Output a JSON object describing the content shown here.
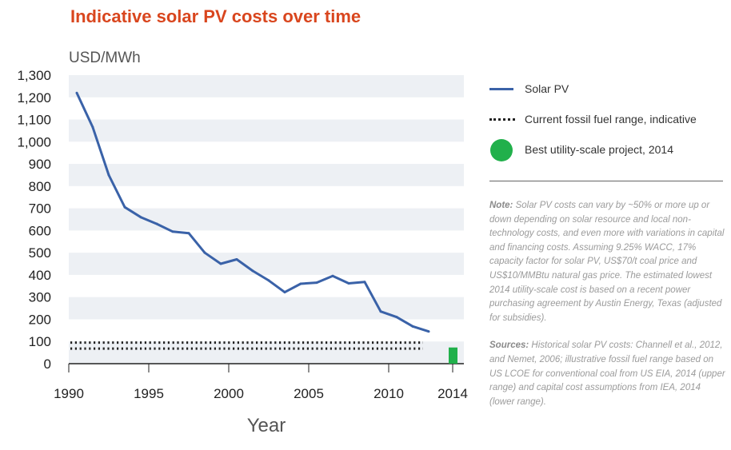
{
  "chart_data": {
    "type": "line",
    "title": "Indicative solar PV costs over time",
    "ylabel": "USD/MWh",
    "xlabel": "Year",
    "ylim": [
      0,
      1300
    ],
    "xlim": [
      1990,
      2014.7
    ],
    "yticks": [
      0,
      100,
      200,
      300,
      400,
      500,
      600,
      700,
      800,
      900,
      1000,
      1100,
      1200,
      1300
    ],
    "ytick_labels": [
      "0",
      "100",
      "200",
      "300",
      "400",
      "500",
      "600",
      "700",
      "800",
      "900",
      "1,000",
      "1,100",
      "1,200",
      "1,300"
    ],
    "xticks": [
      1990,
      1995,
      2000,
      2005,
      2010,
      2014
    ],
    "xtick_labels": [
      "1990",
      "1995",
      "2000",
      "2005",
      "2010",
      "2014"
    ],
    "series": [
      {
        "name": "Solar PV",
        "color": "#3a62a8",
        "x": [
          1990.5,
          1991.5,
          1992.5,
          1993.5,
          1994.5,
          1995.5,
          1996.5,
          1997.5,
          1998.5,
          1999.5,
          2000.5,
          2001.5,
          2002.5,
          2003.5,
          2004.5,
          2005.5,
          2006.5,
          2007.5,
          2008.5,
          2009.5,
          2010.5,
          2011.5,
          2012.5
        ],
        "y": [
          1220,
          1065,
          850,
          705,
          660,
          630,
          595,
          588,
          500,
          450,
          470,
          418,
          375,
          322,
          360,
          365,
          395,
          362,
          368,
          235,
          210,
          168,
          145
        ]
      }
    ],
    "fossil_range": {
      "name": "Current fossil fuel range, indicative",
      "values": [
        68,
        95
      ],
      "color": "#222222"
    },
    "best_project": {
      "name": "Best utility-scale project, 2014",
      "x": 2014,
      "value": 73,
      "color": "#21b04b"
    },
    "grid": "alternating horizontal bands",
    "band_color": "#edf0f4",
    "legend_position": "right"
  },
  "notes": {
    "note_label": "Note:",
    "note_text": " Solar PV costs can vary by ~50% or more up or down depending on solar resource and local non-technology costs, and even more with variations in capital and financing costs. Assuming 9.25% WACC, 17% capacity factor for solar PV, US$70/t coal price and US$10/MMBtu natural gas price. The estimated lowest 2014 utility-scale cost is based on a recent power purchasing agreement by Austin Energy, Texas (adjusted for subsidies).",
    "sources_label": "Sources:",
    "sources_text": " Historical solar PV costs: Channell et al., 2012, and Nemet, 2006; illustrative fossil fuel range based on US LCOE for conventional coal from US EIA, 2014 (upper range) and capital cost assumptions from IEA, 2014 (lower range)."
  }
}
